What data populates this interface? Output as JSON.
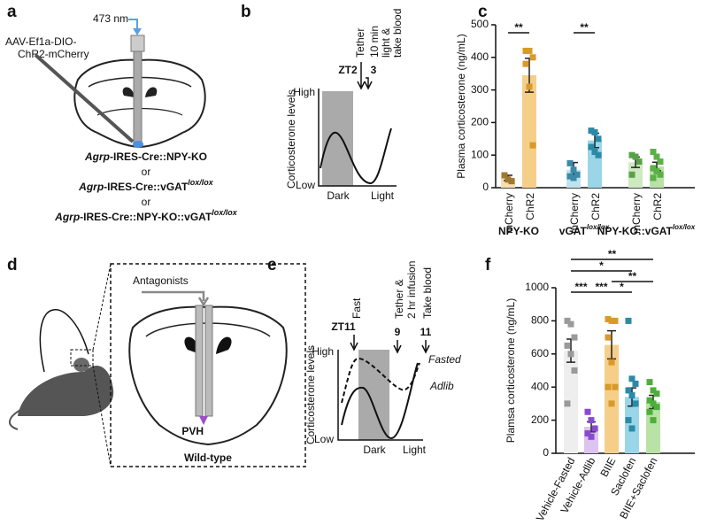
{
  "panels": {
    "a": {
      "label": "a",
      "light": "473 nm",
      "virus": [
        "AAV-Ef1a-DIO-",
        "ChR2-mCherry"
      ],
      "genotypes": [
        {
          "gene": "Agrp",
          "rest": "-IRES-Cre::NPY-KO"
        },
        {
          "text": "or"
        },
        {
          "gene": "Agrp",
          "rest": "-IRES-Cre::vGAT",
          "sup": "lox/lox"
        },
        {
          "text": "or"
        },
        {
          "gene": "Agrp",
          "rest": "-IRES-Cre::NPY-KO::vGAT",
          "sup": "lox/lox"
        }
      ]
    },
    "b": {
      "label": "b",
      "events": [
        "Tether",
        "10 min",
        "light &",
        "take blood"
      ],
      "times": [
        "ZT2",
        "3"
      ],
      "high": "High",
      "low": "Low",
      "ylabel": "Corticosterone levels",
      "dark": "Dark",
      "light": "Light"
    },
    "d": {
      "label": "d",
      "drug": "Antagonists",
      "region": "PVH",
      "genotype": "Wild-type"
    },
    "e": {
      "label": "e",
      "fast": "Fast",
      "events": [
        "Tether &",
        "2 hr infusion",
        "Take blood"
      ],
      "times": [
        "ZT11",
        "9",
        "11"
      ],
      "high": "High",
      "low": "Low",
      "ylabel": "Corticosterone levels",
      "dark": "Dark",
      "light": "Light",
      "fasted": "Fasted",
      "adlib": "Adlib"
    }
  },
  "chart_data": [
    {
      "type": "bar",
      "panel": "c",
      "y_label": "Plasma corticosterone (ng/mL)",
      "categories": [
        "mCherry",
        "ChR2",
        "mCherry",
        "ChR2",
        "mCherry",
        "ChR2"
      ],
      "groups": [
        {
          "label": "NPY-KO"
        },
        {
          "label": "vGAT",
          "sup": "lox/lox"
        },
        {
          "label": "NPY-KO::vGAT",
          "sup": "lox/lox"
        }
      ],
      "values": [
        30,
        345,
        55,
        145,
        78,
        65
      ],
      "errors": [
        8,
        52,
        22,
        22,
        16,
        13
      ],
      "points": [
        [
          38,
          25,
          20
        ],
        [
          420,
          420,
          400,
          380,
          310,
          130
        ],
        [
          75,
          55,
          40,
          35,
          30
        ],
        [
          175,
          170,
          150,
          125,
          110,
          100
        ],
        [
          100,
          95,
          80,
          40
        ],
        [
          110,
          95,
          80,
          60,
          50,
          40,
          30
        ]
      ],
      "colors": [
        "#f7dfb0",
        "#f5cf8a",
        "#bfe3ee",
        "#9ad6e8",
        "#cdeac0",
        "#b9e2a6"
      ],
      "point_colors": [
        "#a07830",
        "#d89a2a",
        "#3a8aa8",
        "#2a8aa8",
        "#5aa048",
        "#5cb048"
      ],
      "ylim": [
        0,
        500
      ],
      "yticks": [
        0,
        100,
        200,
        300,
        400,
        500
      ],
      "significance": [
        {
          "label": "**",
          "from": 0,
          "to": 1
        },
        {
          "label": "**",
          "from": 2,
          "to": 3
        }
      ]
    },
    {
      "type": "bar",
      "panel": "f",
      "y_label": "Plamsa corticosterone (ng/mL)",
      "categories": [
        "Vehicle-Fasted",
        "Vehicle-Adlib",
        "BIIE",
        "Saclofen",
        "BIIE+Saclofen"
      ],
      "values": [
        620,
        160,
        655,
        340,
        310
      ],
      "errors": [
        70,
        30,
        85,
        55,
        40
      ],
      "points": [
        [
          800,
          780,
          700,
          650,
          600,
          500,
          300
        ],
        [
          250,
          200,
          150,
          120,
          100
        ],
        [
          810,
          800,
          800,
          700,
          550,
          400,
          400,
          300
        ],
        [
          800,
          450,
          420,
          380,
          350,
          300,
          200,
          150
        ],
        [
          430,
          380,
          360,
          320,
          300,
          280,
          250,
          200
        ]
      ],
      "colors": [
        "#eeeeee",
        "#dcc3f0",
        "#f5cf8a",
        "#9ad6e8",
        "#b9e2a6"
      ],
      "point_colors": [
        "#9a9a9a",
        "#8a4ad0",
        "#d89a2a",
        "#2a8aa8",
        "#4caf3a"
      ],
      "ylim": [
        0,
        1000
      ],
      "yticks": [
        0,
        200,
        400,
        600,
        800,
        1000
      ],
      "significance": [
        {
          "label": "**",
          "from": 0,
          "to": 4
        },
        {
          "label": "*",
          "from": 0,
          "to": 3
        },
        {
          "label": "**",
          "from": 2,
          "to": 4
        },
        {
          "label": "***",
          "from": 0,
          "to": 1
        },
        {
          "label": "***",
          "from": 1,
          "to": 2
        },
        {
          "label": "*",
          "from": 2,
          "to": 3
        }
      ]
    }
  ]
}
